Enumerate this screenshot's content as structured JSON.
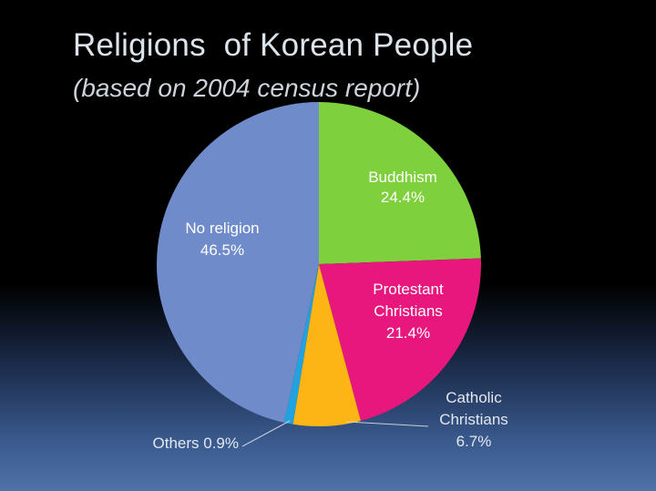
{
  "title": "Religions  of Korean People",
  "subtitle": "(based on 2004 census report)",
  "chart_data": {
    "type": "pie",
    "title": "Religions  of Korean People",
    "subtitle": "(based on 2004 census report)",
    "start": "12 o'clock, clockwise",
    "slices": [
      {
        "name": "Buddhism",
        "value": 24.4,
        "color": "#7ed13d",
        "label_lines": [
          "Buddhism",
          "24.4%"
        ],
        "label_color": "#ffffff"
      },
      {
        "name": "Protestant Christians",
        "value": 21.4,
        "color": "#e8177e",
        "label_lines": [
          "Protestant",
          "Christians",
          "21.4%"
        ],
        "label_color": "#ffffff"
      },
      {
        "name": "Catholic Christians",
        "value": 6.7,
        "color": "#fdb515",
        "label_lines": [
          "Catholic",
          "Christians",
          "6.7%"
        ],
        "label_color": "#e3e8ef"
      },
      {
        "name": "Others",
        "value": 0.9,
        "color": "#22a3df",
        "label_lines": [
          "Others 0.9%"
        ],
        "label_color": "#e3e8ef"
      },
      {
        "name": "No religion",
        "value": 46.5,
        "color": "#6f8bc9",
        "label_lines": [
          "No religion",
          "46.5%"
        ],
        "label_color": "#ffffff"
      }
    ]
  }
}
